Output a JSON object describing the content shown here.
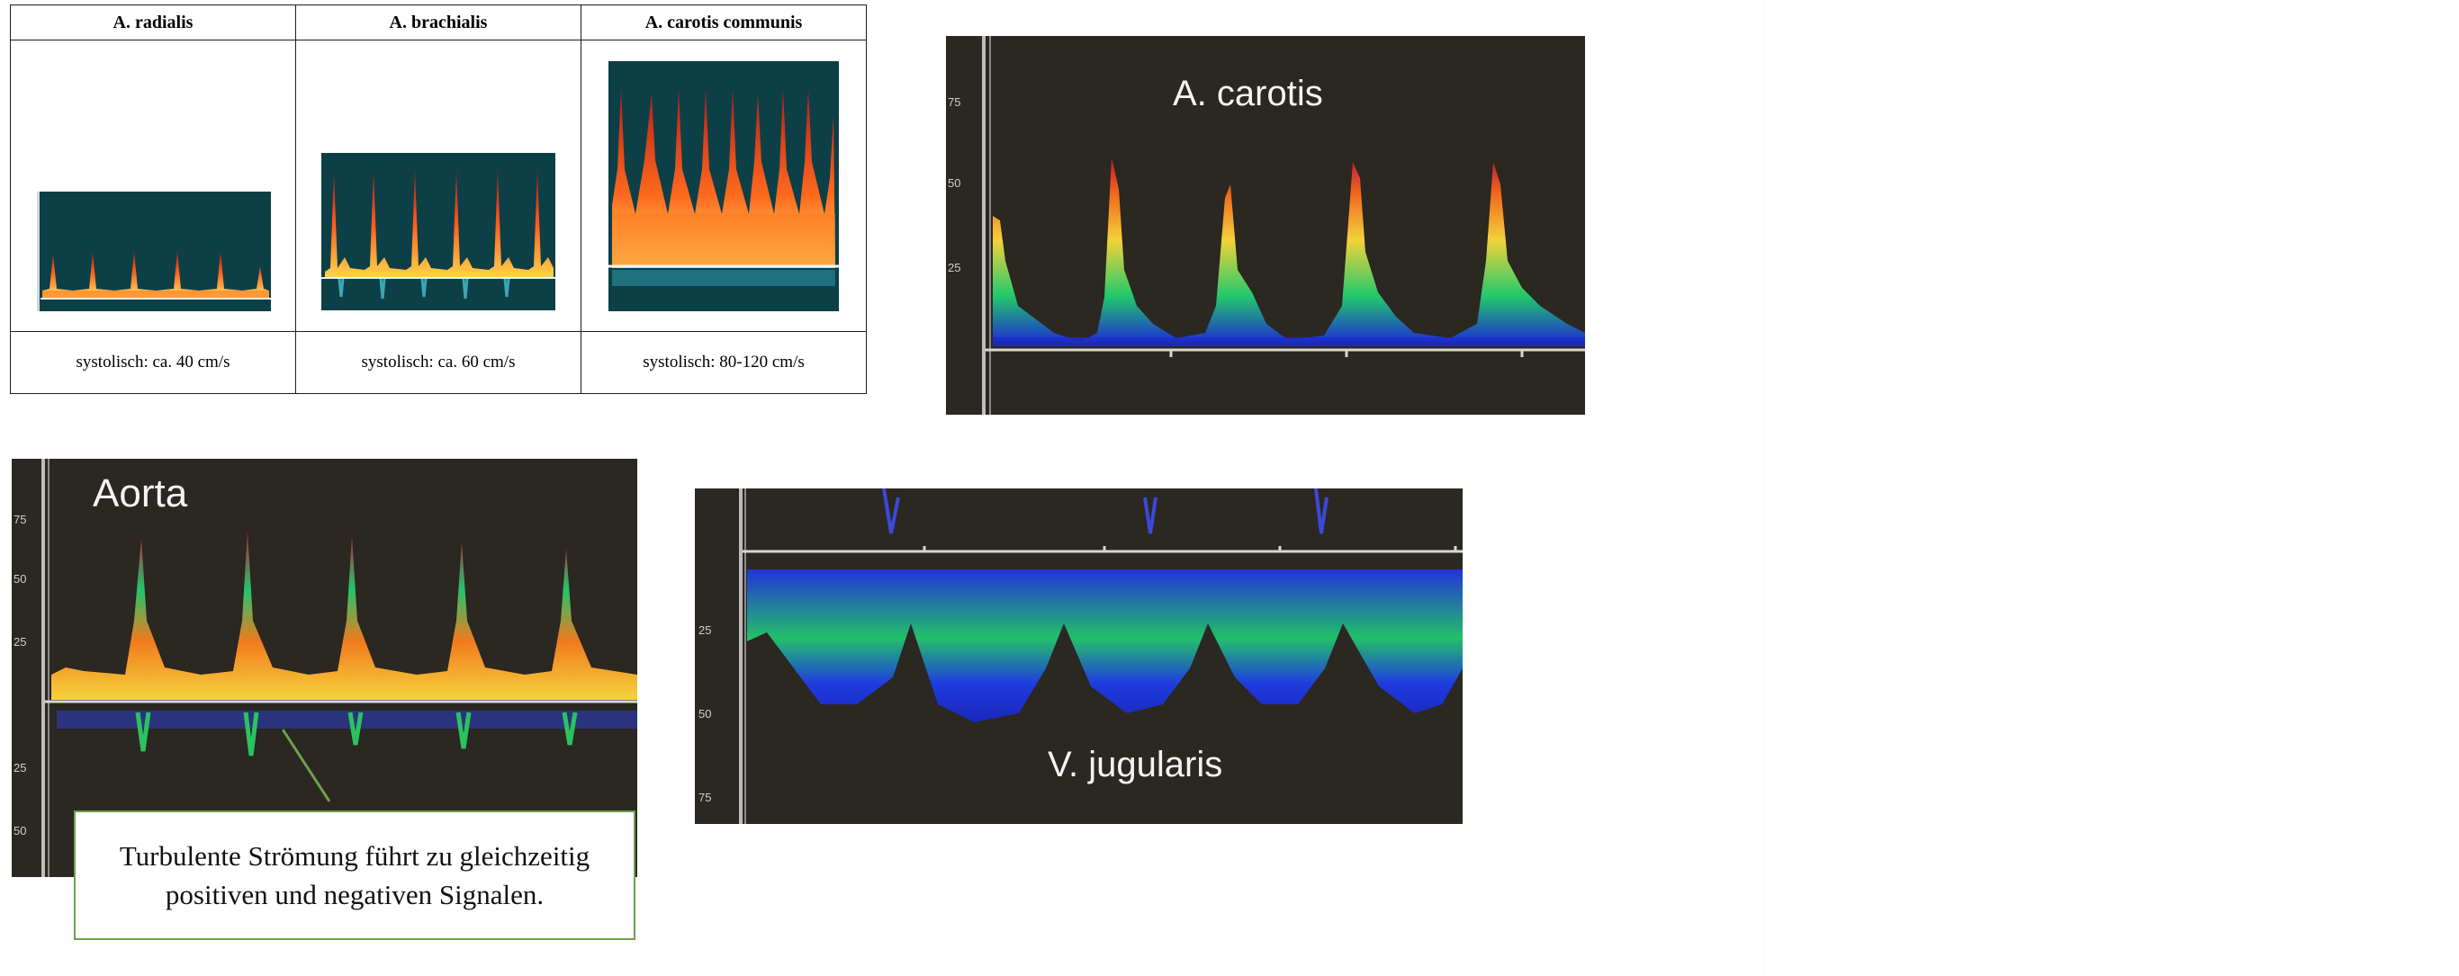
{
  "table": {
    "headers": [
      "A. radialis",
      "A. brachialis",
      "A. carotis communis"
    ],
    "captions": [
      "systolisch: ca. 40 cm/s",
      "systolisch: ca. 60 cm/s",
      "systolisch: 80-120 cm/s"
    ]
  },
  "panels": {
    "carotis": {
      "title": "A. carotis",
      "ticks": [
        "75",
        "50",
        "25"
      ]
    },
    "aorta": {
      "title": "Aorta",
      "ticks": [
        "75",
        "50",
        "25",
        "25",
        "50"
      ]
    },
    "jugularis": {
      "title": "V. jugularis",
      "ticks": [
        "25",
        "50",
        "75"
      ]
    }
  },
  "callout": {
    "line1": "Turbulente Strömung führt zu gleichzeitig",
    "line2": "positiven und negativen Signalen."
  }
}
